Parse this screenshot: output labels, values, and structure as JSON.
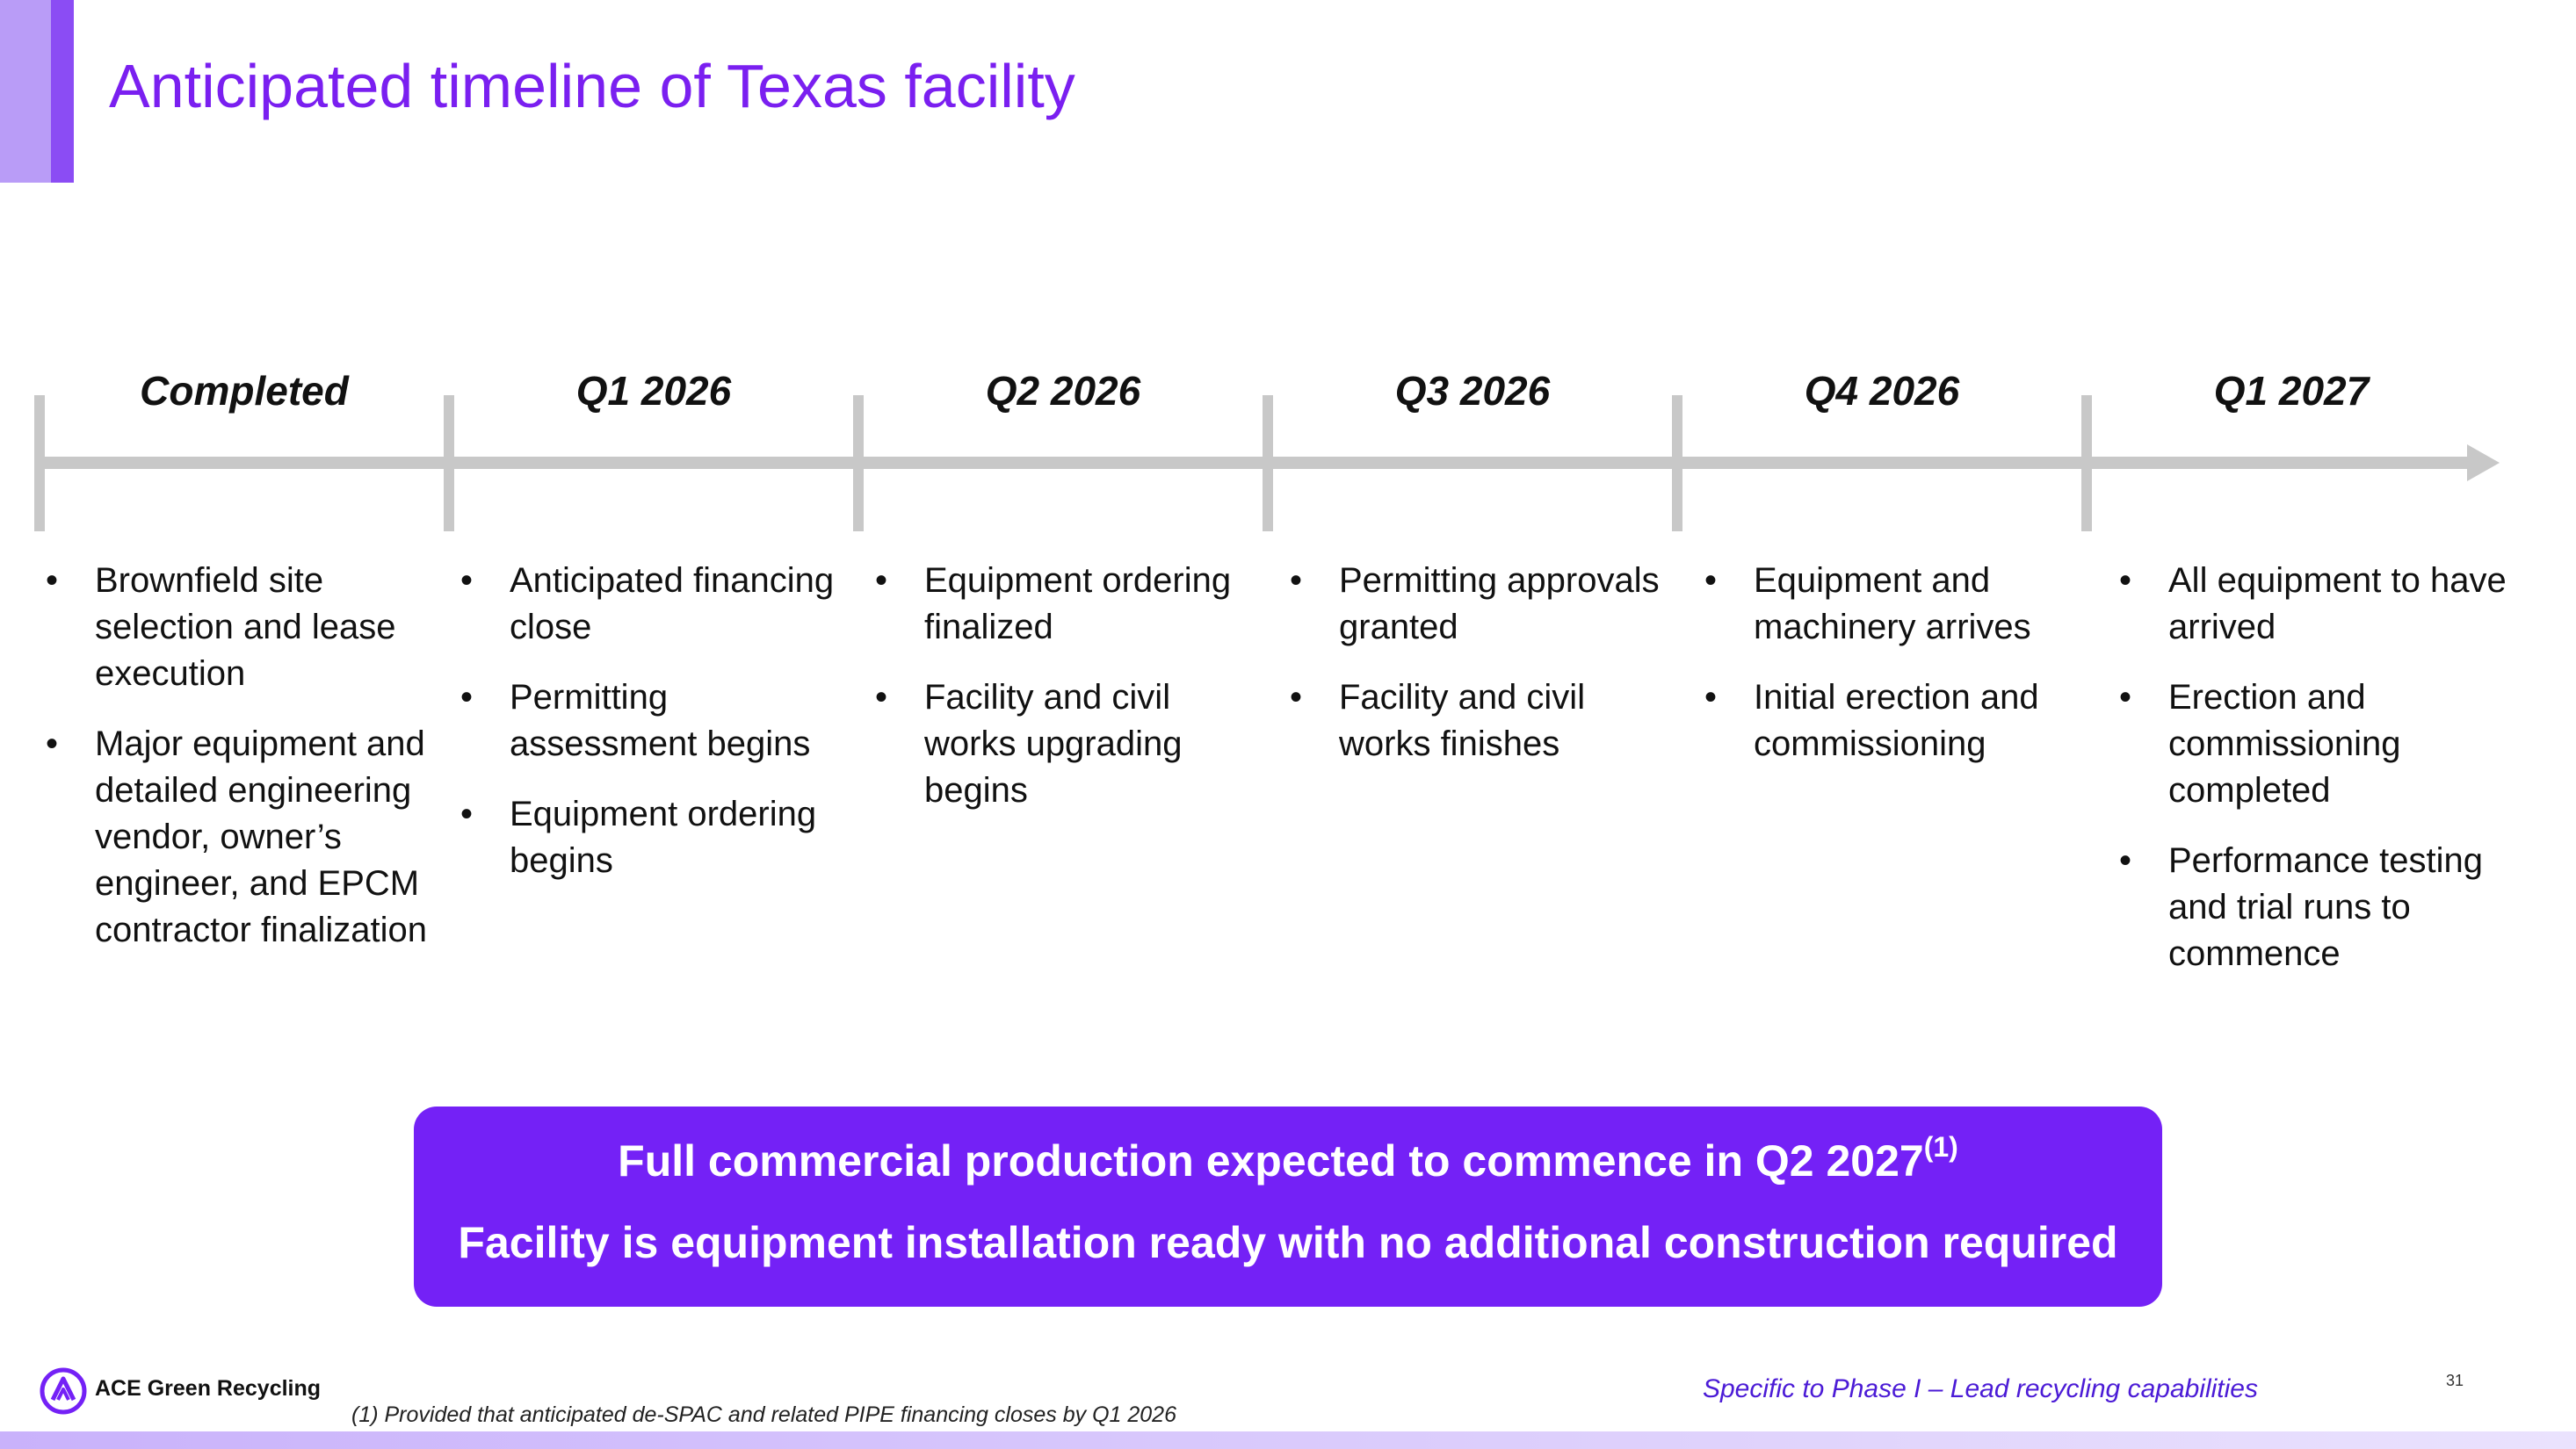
{
  "header": {
    "title": "Anticipated timeline of Texas facility"
  },
  "timeline": {
    "periods": [
      "Completed",
      "Q1 2026",
      "Q2 2026",
      "Q3 2026",
      "Q4 2026",
      "Q1 2027"
    ],
    "columns": [
      {
        "items": [
          "Brownfield site selection and lease execution",
          "Major equipment and detailed engineering vendor, owner’s engineer, and EPCM contractor finalization"
        ]
      },
      {
        "items": [
          "Anticipated financing close",
          "Permitting assessment begins",
          "Equipment ordering begins"
        ]
      },
      {
        "items": [
          "Equipment ordering finalized",
          "Facility and civil works upgrading begins"
        ]
      },
      {
        "items": [
          "Permitting approvals granted",
          "Facility and civil works finishes"
        ]
      },
      {
        "items": [
          "Equipment and machinery arrives",
          "Initial erection and commissioning"
        ]
      },
      {
        "items": [
          "All equipment to have arrived",
          "Erection and commissioning completed",
          "Performance testing and trial runs to commence"
        ]
      }
    ],
    "bullet_char": "•"
  },
  "banner": {
    "line1": "Full commercial production expected to commence in Q2 2027",
    "line1_sup": "(1)",
    "line2": "Facility is equipment installation ready with no additional construction required"
  },
  "footer": {
    "logo_text": "ACE Green Recycling",
    "footnote": "(1) Provided that anticipated de-SPAC and related PIPE financing closes by Q1 2026",
    "phase_note": "Specific to Phase I – Lead recycling capabilities",
    "page_number": "31"
  },
  "colors": {
    "title": "#7a1ff0",
    "banner": "#7421f6",
    "axis": "#c8c8c8",
    "accent_light": "#b99cf7",
    "accent_dark": "#8b4cf4",
    "phase_note": "#4b1bd6"
  },
  "icons": {
    "logo": "ace-green-recycling-logo-icon",
    "axis_arrow": "arrow-right-icon"
  }
}
